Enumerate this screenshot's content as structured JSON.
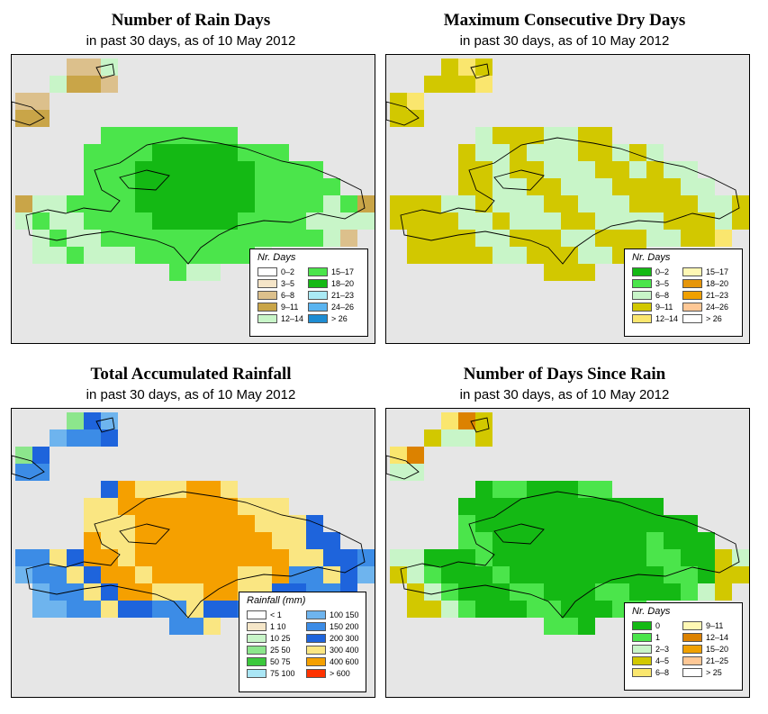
{
  "panels": [
    {
      "id": "rain-days",
      "title": "Number of Rain Days",
      "subtitle": "in past 30 days, as of  10 May 2012",
      "legend": {
        "title": "Nr. Days",
        "items": [
          {
            "label": "0–2",
            "color": "#ffffff"
          },
          {
            "label": "3–5",
            "color": "#f5e5c8"
          },
          {
            "label": "6–8",
            "color": "#dcc08c"
          },
          {
            "label": "9–11",
            "color": "#c9a548"
          },
          {
            "label": "12–14",
            "color": "#c8f5c8"
          },
          {
            "label": "15–17",
            "color": "#4be54b"
          },
          {
            "label": "18–20",
            "color": "#14b914"
          },
          {
            "label": "21–23",
            "color": "#aaeaf5"
          },
          {
            "label": "24–26",
            "color": "#5ab4f0"
          },
          {
            "label": "> 26",
            "color": "#1e8cd2"
          }
        ]
      }
    },
    {
      "id": "max-dry-days",
      "title": "Maximum Consecutive Dry Days",
      "subtitle": "in past 30 days, as of  10 May 2012",
      "legend": {
        "title": "Nr. Days",
        "items": [
          {
            "label": "0–2",
            "color": "#14b914"
          },
          {
            "label": "3–5",
            "color": "#4be54b"
          },
          {
            "label": "6–8",
            "color": "#c8f5c8"
          },
          {
            "label": "9–11",
            "color": "#d2c800"
          },
          {
            "label": "12–14",
            "color": "#fae66e"
          },
          {
            "label": "15–17",
            "color": "#fff8b4"
          },
          {
            "label": "18–20",
            "color": "#e6960a"
          },
          {
            "label": "21–23",
            "color": "#f0a000"
          },
          {
            "label": "24–26",
            "color": "#ffc896"
          },
          {
            "label": "> 26",
            "color": "#ffffff"
          }
        ]
      }
    },
    {
      "id": "total-rainfall",
      "title": "Total Accumulated Rainfall",
      "subtitle": "in past 30 days, as of  10 May 2012",
      "legend": {
        "title": "Rainfall (mm)",
        "items": [
          {
            "label": "< 1",
            "color": "#ffffff"
          },
          {
            "label": "1   10",
            "color": "#f5e6c8"
          },
          {
            "label": "10   25",
            "color": "#c8f5c8"
          },
          {
            "label": "25   50",
            "color": "#8ce68c"
          },
          {
            "label": "50   75",
            "color": "#3cc83c"
          },
          {
            "label": "75  100",
            "color": "#aae6f5"
          },
          {
            "label": "100  150",
            "color": "#6eb4ee"
          },
          {
            "label": "150  200",
            "color": "#3c8ce6"
          },
          {
            "label": "200  300",
            "color": "#1e64dc"
          },
          {
            "label": "300  400",
            "color": "#fae682"
          },
          {
            "label": "400  600",
            "color": "#f5a000"
          },
          {
            "label": "> 600",
            "color": "#ff3200"
          }
        ]
      }
    },
    {
      "id": "days-since-rain",
      "title": "Number of Days Since Rain",
      "subtitle": "in past 30 days, as of  10 May 2012",
      "legend": {
        "title": "Nr. Days",
        "items": [
          {
            "label": "0",
            "color": "#14b914"
          },
          {
            "label": "1",
            "color": "#4be54b"
          },
          {
            "label": "2–3",
            "color": "#c8f5c8"
          },
          {
            "label": "4–5",
            "color": "#d2c800"
          },
          {
            "label": "6–8",
            "color": "#fae66e"
          },
          {
            "label": "9–11",
            "color": "#fff8b4"
          },
          {
            "label": "12–14",
            "color": "#dc8200"
          },
          {
            "label": "15–20",
            "color": "#f0a000"
          },
          {
            "label": "21–25",
            "color": "#ffc896"
          },
          {
            "label": "> 25",
            "color": "#ffffff"
          }
        ]
      }
    }
  ]
}
